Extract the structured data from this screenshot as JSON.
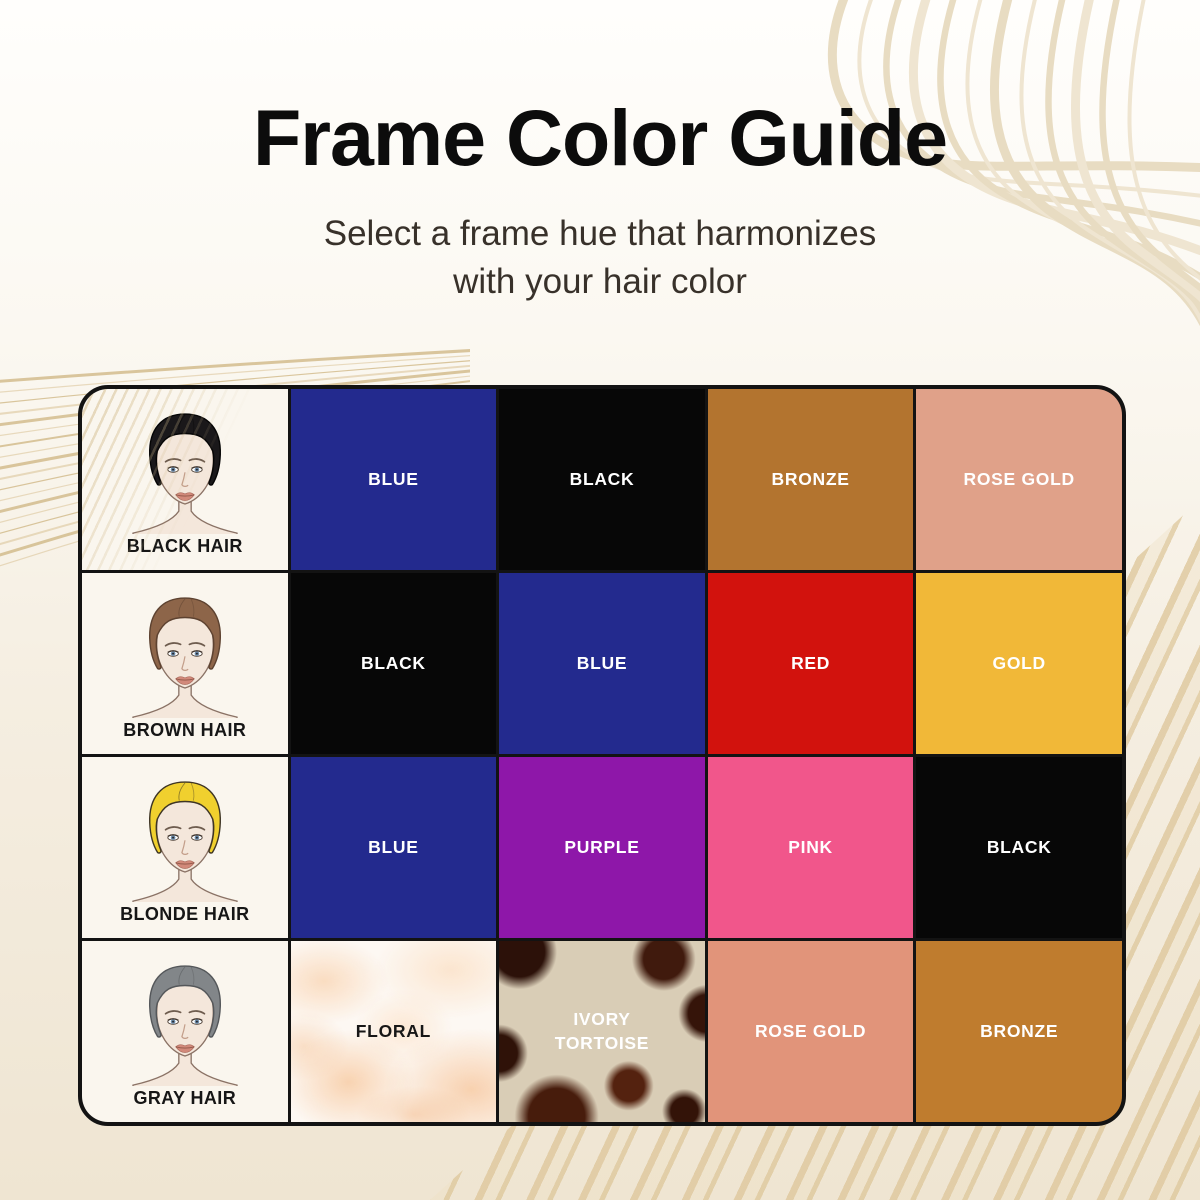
{
  "header": {
    "title": "Frame Color Guide",
    "subtitle_line1": "Select a frame hue that harmonizes",
    "subtitle_line2": "with your hair color"
  },
  "palette": {
    "page_background_top": "#fffefc",
    "page_background_bottom": "#efe5d2",
    "decor_line": "#e8dcc2",
    "table_border": "#131313",
    "face_cell_background": "#faf6ee",
    "skin": "#f4e7db",
    "label_dark": "#161616",
    "label_light": "#ffffff"
  },
  "grid": {
    "rows": [
      {
        "hair": {
          "label": "BLACK HAIR",
          "color": "#1a181a",
          "outline": "#050505"
        },
        "swatches": [
          {
            "label": "BLUE",
            "bg": "#232a8e",
            "text": "#ffffff"
          },
          {
            "label": "BLACK",
            "bg": "#070707",
            "text": "#ffffff"
          },
          {
            "label": "BRONZE",
            "bg": "#b3742f",
            "text": "#ffffff"
          },
          {
            "label": "ROSE GOLD",
            "bg": "#e0a189",
            "text": "#ffffff"
          }
        ]
      },
      {
        "hair": {
          "label": "BROWN HAIR",
          "color": "#8d6549",
          "outline": "#5d4230"
        },
        "swatches": [
          {
            "label": "BLACK",
            "bg": "#070707",
            "text": "#ffffff"
          },
          {
            "label": "BLUE",
            "bg": "#232a8e",
            "text": "#ffffff"
          },
          {
            "label": "RED",
            "bg": "#d2120d",
            "text": "#ffffff"
          },
          {
            "label": "GOLD",
            "bg": "#f1b838",
            "text": "#ffffff"
          }
        ]
      },
      {
        "hair": {
          "label": "BLONDE HAIR",
          "color": "#f0d02e",
          "outline": "#3e3524"
        },
        "swatches": [
          {
            "label": "BLUE",
            "bg": "#232a8e",
            "text": "#ffffff"
          },
          {
            "label": "PURPLE",
            "bg": "#8e17a9",
            "text": "#ffffff"
          },
          {
            "label": "PINK",
            "bg": "#f1568b",
            "text": "#ffffff"
          },
          {
            "label": "BLACK",
            "bg": "#070707",
            "text": "#ffffff"
          }
        ]
      },
      {
        "hair": {
          "label": "GRAY HAIR",
          "color": "#828689",
          "outline": "#54575a"
        },
        "swatches": [
          {
            "label": "FLORAL",
            "texture": "floral",
            "text": "#171717"
          },
          {
            "label": "IVORY TORTOISE",
            "texture": "tortoise",
            "text": "#ffffff"
          },
          {
            "label": "ROSE GOLD",
            "bg": "#e1947a",
            "text": "#ffffff"
          },
          {
            "label": "BRONZE",
            "bg": "#bf7c2e",
            "text": "#ffffff"
          }
        ]
      }
    ]
  }
}
